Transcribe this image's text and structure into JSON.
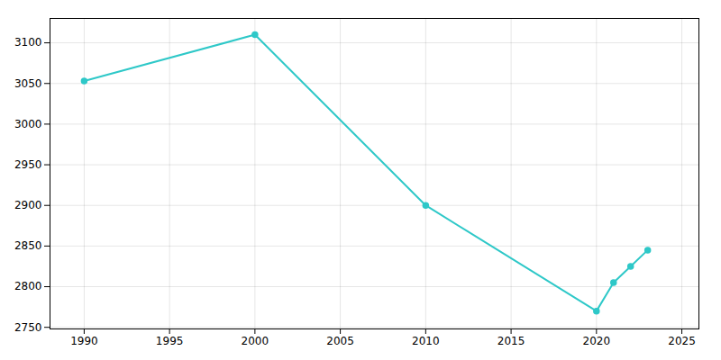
{
  "chart_data": {
    "type": "line",
    "x": [
      1990,
      2000,
      2010,
      2020,
      2021,
      2022,
      2023
    ],
    "values": [
      3053,
      3110,
      2900,
      2770,
      2805,
      2825,
      2845
    ],
    "color": "#2ec8c8",
    "marker": "circle",
    "xlim": [
      1988,
      2026
    ],
    "ylim": [
      2748,
      3130
    ],
    "xticks": [
      1990,
      1995,
      2000,
      2005,
      2010,
      2015,
      2020,
      2025
    ],
    "yticks": [
      2750,
      2800,
      2850,
      2900,
      2950,
      3000,
      3050,
      3100
    ],
    "grid": true
  }
}
